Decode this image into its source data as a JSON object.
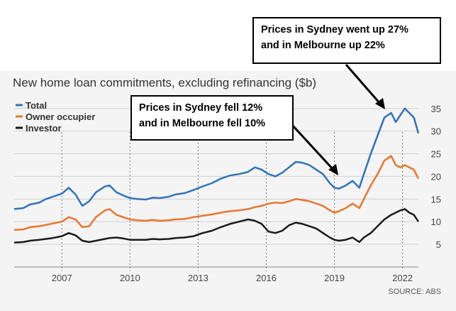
{
  "chart_data": {
    "type": "line",
    "title": "New home loan commitments, excluding refinancing ($b)",
    "source": "SOURCE: ABS",
    "x_ticks": [
      "2007",
      "2010",
      "2013",
      "2016",
      "2019",
      "2022"
    ],
    "y_ticks": [
      5,
      10,
      15,
      20,
      25,
      30,
      35
    ],
    "ylim": [
      0,
      37
    ],
    "xlim": [
      2004.9,
      2022.7
    ],
    "grid": "horizontal",
    "legend_position": "top-left",
    "series": [
      {
        "name": "Total",
        "color": "#2f73b8",
        "x": [
          2004.9,
          2005.3,
          2005.6,
          2006.0,
          2006.3,
          2006.6,
          2007.0,
          2007.3,
          2007.6,
          2007.9,
          2008.2,
          2008.5,
          2008.9,
          2009.1,
          2009.4,
          2009.7,
          2010.0,
          2010.3,
          2010.7,
          2011.0,
          2011.3,
          2011.7,
          2012.0,
          2012.4,
          2012.8,
          2013.2,
          2013.6,
          2014.0,
          2014.4,
          2014.8,
          2015.2,
          2015.5,
          2015.8,
          2016.1,
          2016.4,
          2016.7,
          2017.0,
          2017.3,
          2017.6,
          2017.9,
          2018.2,
          2018.5,
          2018.8,
          2019.0,
          2019.2,
          2019.5,
          2019.8,
          2020.1,
          2020.3,
          2020.6,
          2020.9,
          2021.2,
          2021.5,
          2021.7,
          2021.9,
          2022.1,
          2022.3,
          2022.5,
          2022.7
        ],
        "values": [
          12.8,
          13.0,
          13.8,
          14.2,
          15.0,
          15.5,
          16.2,
          17.5,
          16.0,
          13.5,
          14.5,
          16.5,
          17.8,
          18.0,
          16.5,
          15.8,
          15.2,
          15.0,
          14.9,
          15.3,
          15.2,
          15.5,
          16.0,
          16.3,
          17.0,
          17.8,
          18.5,
          19.5,
          20.2,
          20.5,
          21.0,
          22.0,
          21.5,
          20.5,
          20.0,
          20.8,
          22.0,
          23.2,
          23.0,
          22.5,
          21.5,
          20.5,
          18.5,
          17.5,
          17.3,
          18.0,
          19.0,
          17.5,
          20.5,
          25.0,
          29.0,
          33.0,
          34.0,
          32.0,
          33.5,
          35.0,
          34.0,
          33.0,
          29.5
        ]
      },
      {
        "name": "Owner occupier",
        "color": "#e8762c",
        "x": [
          2004.9,
          2005.3,
          2005.6,
          2006.0,
          2006.3,
          2006.6,
          2007.0,
          2007.3,
          2007.6,
          2007.9,
          2008.2,
          2008.5,
          2008.9,
          2009.1,
          2009.4,
          2009.7,
          2010.0,
          2010.3,
          2010.7,
          2011.0,
          2011.3,
          2011.7,
          2012.0,
          2012.4,
          2012.8,
          2013.2,
          2013.6,
          2014.0,
          2014.4,
          2014.8,
          2015.2,
          2015.5,
          2015.8,
          2016.1,
          2016.4,
          2016.7,
          2017.0,
          2017.3,
          2017.6,
          2017.9,
          2018.2,
          2018.5,
          2018.8,
          2019.0,
          2019.2,
          2019.5,
          2019.8,
          2020.1,
          2020.3,
          2020.6,
          2020.9,
          2021.2,
          2021.5,
          2021.7,
          2021.9,
          2022.1,
          2022.3,
          2022.5,
          2022.7
        ],
        "values": [
          8.2,
          8.3,
          8.8,
          9.0,
          9.3,
          9.6,
          10.0,
          11.0,
          10.5,
          8.8,
          9.0,
          11.0,
          12.5,
          12.8,
          11.5,
          11.0,
          10.5,
          10.3,
          10.2,
          10.4,
          10.2,
          10.3,
          10.5,
          10.6,
          11.0,
          11.3,
          11.6,
          12.0,
          12.3,
          12.5,
          12.8,
          13.2,
          13.5,
          14.0,
          14.2,
          14.1,
          14.5,
          15.0,
          14.8,
          14.5,
          14.0,
          13.5,
          12.5,
          12.0,
          12.3,
          13.0,
          14.0,
          13.0,
          15.0,
          18.0,
          20.5,
          23.5,
          24.5,
          22.5,
          22.0,
          22.5,
          22.0,
          21.5,
          19.5
        ]
      },
      {
        "name": "Investor",
        "color": "#1a1a1a",
        "x": [
          2004.9,
          2005.3,
          2005.6,
          2006.0,
          2006.3,
          2006.6,
          2007.0,
          2007.3,
          2007.6,
          2007.9,
          2008.2,
          2008.5,
          2008.9,
          2009.1,
          2009.4,
          2009.7,
          2010.0,
          2010.3,
          2010.7,
          2011.0,
          2011.3,
          2011.7,
          2012.0,
          2012.4,
          2012.8,
          2013.2,
          2013.6,
          2014.0,
          2014.4,
          2014.8,
          2015.2,
          2015.5,
          2015.8,
          2016.1,
          2016.4,
          2016.7,
          2017.0,
          2017.3,
          2017.6,
          2017.9,
          2018.2,
          2018.5,
          2018.8,
          2019.0,
          2019.2,
          2019.5,
          2019.8,
          2020.1,
          2020.3,
          2020.6,
          2020.9,
          2021.2,
          2021.5,
          2021.7,
          2021.9,
          2022.1,
          2022.3,
          2022.5,
          2022.7
        ],
        "values": [
          5.4,
          5.5,
          5.8,
          6.0,
          6.2,
          6.4,
          6.8,
          7.5,
          7.0,
          5.8,
          5.5,
          5.8,
          6.2,
          6.4,
          6.5,
          6.3,
          6.0,
          6.0,
          6.0,
          6.2,
          6.1,
          6.2,
          6.4,
          6.5,
          6.8,
          7.5,
          8.0,
          8.8,
          9.5,
          10.0,
          10.5,
          10.2,
          9.5,
          7.8,
          7.5,
          8.0,
          9.2,
          9.8,
          9.5,
          9.0,
          8.5,
          7.5,
          6.5,
          6.0,
          5.8,
          6.0,
          6.5,
          5.5,
          6.5,
          7.5,
          9.0,
          10.5,
          11.5,
          12.0,
          12.5,
          12.8,
          12.0,
          11.5,
          10.0
        ]
      }
    ],
    "annotations": [
      {
        "id": "rise",
        "lines": [
          "Prices in Sydney went up 27%",
          "and in Melbourne up 22%"
        ]
      },
      {
        "id": "fall",
        "lines": [
          "Prices in Sydney fell 12%",
          "and in Melbourne fell 10%"
        ]
      }
    ]
  }
}
